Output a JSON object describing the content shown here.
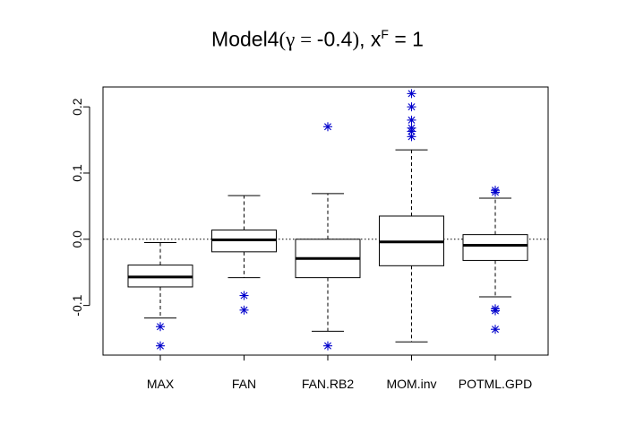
{
  "chart_data": {
    "type": "box",
    "title": {
      "prefix": "Model4",
      "open_paren": "(",
      "gamma_symbol": "γ",
      "equals": " = ",
      "gamma_value": "-0.4",
      "close_paren": ")",
      "separator": ", x",
      "superscript": "F",
      "rhs": " = 1"
    },
    "xlabel": "",
    "ylabel": "",
    "ylim": [
      -0.175,
      0.23
    ],
    "yticks": [
      -0.1,
      0.0,
      0.1,
      0.2
    ],
    "ytick_labels": [
      "-0.1",
      "0.0",
      "0.1",
      "0.2"
    ],
    "reference_line": 0.0,
    "outlier_color": "#0000cc",
    "categories": [
      "MAX",
      "FAN",
      "FAN.RB2",
      "MOM.inv",
      "POTML.GPD"
    ],
    "boxes": [
      {
        "name": "MAX",
        "whisker_low": -0.119,
        "q1": -0.072,
        "median": -0.057,
        "q3": -0.039,
        "whisker_high": -0.005,
        "outliers": [
          -0.132,
          -0.161
        ]
      },
      {
        "name": "FAN",
        "whisker_low": -0.058,
        "q1": -0.019,
        "median": -0.001,
        "q3": 0.014,
        "whisker_high": 0.066,
        "outliers": [
          -0.085,
          -0.107
        ]
      },
      {
        "name": "FAN.RB2",
        "whisker_low": -0.139,
        "q1": -0.058,
        "median": -0.029,
        "q3": 0.0,
        "whisker_high": 0.069,
        "outliers": [
          0.17,
          -0.161
        ]
      },
      {
        "name": "MOM.inv",
        "whisker_low": -0.155,
        "q1": -0.04,
        "median": -0.004,
        "q3": 0.035,
        "whisker_high": 0.135,
        "outliers": [
          0.22,
          0.2,
          0.18,
          0.168,
          0.163,
          0.155
        ]
      },
      {
        "name": "POTML.GPD",
        "whisker_low": -0.087,
        "q1": -0.032,
        "median": -0.009,
        "q3": 0.007,
        "whisker_high": 0.062,
        "outliers": [
          0.074,
          0.071,
          -0.105,
          -0.108,
          -0.136
        ]
      }
    ]
  }
}
